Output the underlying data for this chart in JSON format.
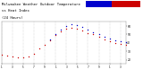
{
  "title": "Milwaukee Weather Outdoor Temperature",
  "title2": "vs Heat Index",
  "title3": "(24 Hours)",
  "title_fontsize": 2.8,
  "background_color": "#ffffff",
  "grid_color": "#aaaaaa",
  "temp_color": "#cc0000",
  "heat_color": "#0000cc",
  "temp_x": [
    0,
    1,
    2,
    3,
    4,
    5,
    6,
    7,
    8,
    9,
    10,
    11,
    12,
    13,
    14,
    15,
    16,
    17,
    18,
    19,
    20,
    21,
    22,
    23
  ],
  "temp_y": [
    26,
    25,
    24,
    23,
    23,
    24,
    27,
    33,
    38,
    43,
    49,
    54,
    57,
    58,
    57,
    55,
    52,
    50,
    47,
    44,
    42,
    40,
    39,
    38
  ],
  "heat_x": [
    9,
    10,
    11,
    12,
    13,
    14,
    15,
    16,
    17,
    18,
    19,
    20,
    21,
    22,
    23
  ],
  "heat_y": [
    44,
    51,
    56,
    60,
    62,
    61,
    59,
    56,
    53,
    50,
    47,
    45,
    43,
    42,
    41
  ],
  "xlim": [
    0,
    23
  ],
  "ylim": [
    15,
    65
  ],
  "y_ticks": [
    20,
    30,
    40,
    50,
    60
  ],
  "y_tick_fontsize": 2.2,
  "x_tick_fontsize": 2.0,
  "grid_x_positions": [
    0,
    2,
    4,
    6,
    8,
    10,
    12,
    14,
    16,
    18,
    20,
    22
  ],
  "xtick_positions": [
    0,
    2,
    4,
    6,
    8,
    10,
    12,
    14,
    16,
    18,
    20,
    22
  ],
  "xtick_labels": [
    "1",
    "3",
    "5",
    "7",
    "9",
    "1",
    "3",
    "5",
    "7",
    "9",
    "1",
    "3"
  ]
}
